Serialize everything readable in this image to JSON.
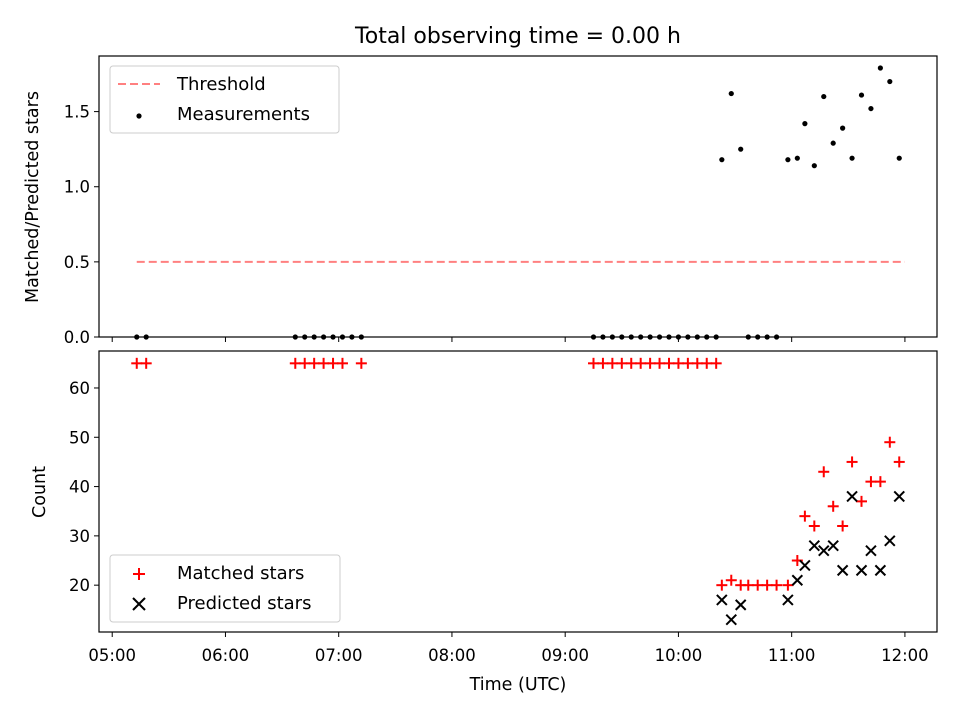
{
  "chart_data": [
    {
      "type": "scatter",
      "title": "Total observing time = 0.00 h",
      "ylabel": "Matched/Predicted stars",
      "xlabel": "",
      "x_unit": "time (UTC, HH:MM)",
      "xlim": [
        "04:53",
        "12:17"
      ],
      "ylim": [
        0.0,
        1.87
      ],
      "yticks": [
        0.0,
        0.5,
        1.0,
        1.5
      ],
      "ytick_labels": [
        "0.0",
        "0.5",
        "1.0",
        "1.5"
      ],
      "grid": false,
      "legend": {
        "placement": "top-left",
        "entries": [
          "Threshold",
          "Measurements"
        ]
      },
      "series": [
        {
          "name": "Threshold",
          "style": "dashed-line",
          "color": "#ff8080",
          "points": [
            {
              "x": "05:13",
              "y": 0.5
            },
            {
              "x": "12:00",
              "y": 0.5
            }
          ]
        },
        {
          "name": "Measurements",
          "style": "dot",
          "color": "#000000",
          "points": [
            {
              "x": "05:13",
              "y": 0.0
            },
            {
              "x": "05:18",
              "y": 0.0
            },
            {
              "x": "06:37",
              "y": 0.0
            },
            {
              "x": "06:42",
              "y": 0.0
            },
            {
              "x": "06:47",
              "y": 0.0
            },
            {
              "x": "06:52",
              "y": 0.0
            },
            {
              "x": "06:57",
              "y": 0.0
            },
            {
              "x": "07:02",
              "y": 0.0
            },
            {
              "x": "07:07",
              "y": 0.0
            },
            {
              "x": "07:12",
              "y": 0.0
            },
            {
              "x": "09:15",
              "y": 0.0
            },
            {
              "x": "09:20",
              "y": 0.0
            },
            {
              "x": "09:25",
              "y": 0.0
            },
            {
              "x": "09:30",
              "y": 0.0
            },
            {
              "x": "09:35",
              "y": 0.0
            },
            {
              "x": "09:40",
              "y": 0.0
            },
            {
              "x": "09:45",
              "y": 0.0
            },
            {
              "x": "09:50",
              "y": 0.0
            },
            {
              "x": "09:55",
              "y": 0.0
            },
            {
              "x": "10:00",
              "y": 0.0
            },
            {
              "x": "10:05",
              "y": 0.0
            },
            {
              "x": "10:10",
              "y": 0.0
            },
            {
              "x": "10:15",
              "y": 0.0
            },
            {
              "x": "10:20",
              "y": 0.0
            },
            {
              "x": "10:37",
              "y": 0.0
            },
            {
              "x": "10:42",
              "y": 0.0
            },
            {
              "x": "10:47",
              "y": 0.0
            },
            {
              "x": "10:52",
              "y": 0.0
            },
            {
              "x": "10:23",
              "y": 1.18
            },
            {
              "x": "10:28",
              "y": 1.62
            },
            {
              "x": "10:33",
              "y": 1.25
            },
            {
              "x": "10:58",
              "y": 1.18
            },
            {
              "x": "11:03",
              "y": 1.19
            },
            {
              "x": "11:07",
              "y": 1.42
            },
            {
              "x": "11:12",
              "y": 1.14
            },
            {
              "x": "11:17",
              "y": 1.6
            },
            {
              "x": "11:22",
              "y": 1.29
            },
            {
              "x": "11:27",
              "y": 1.39
            },
            {
              "x": "11:32",
              "y": 1.19
            },
            {
              "x": "11:37",
              "y": 1.61
            },
            {
              "x": "11:42",
              "y": 1.52
            },
            {
              "x": "11:47",
              "y": 1.79
            },
            {
              "x": "11:52",
              "y": 1.7
            },
            {
              "x": "11:57",
              "y": 1.19
            }
          ]
        }
      ]
    },
    {
      "type": "scatter",
      "title": "",
      "ylabel": "Count",
      "xlabel": "Time (UTC)",
      "x_unit": "time (UTC, HH:MM)",
      "xlim": [
        "04:53",
        "12:17"
      ],
      "ylim": [
        10.5,
        67.5
      ],
      "yticks": [
        20,
        30,
        40,
        50,
        60
      ],
      "ytick_labels": [
        "20",
        "30",
        "40",
        "50",
        "60"
      ],
      "xticks": [
        "05:00",
        "06:00",
        "07:00",
        "08:00",
        "09:00",
        "10:00",
        "11:00",
        "12:00"
      ],
      "xtick_labels": [
        "05:00",
        "06:00",
        "07:00",
        "08:00",
        "09:00",
        "10:00",
        "11:00",
        "12:00"
      ],
      "grid": false,
      "legend": {
        "placement": "bottom-left",
        "entries": [
          "Matched stars",
          "Predicted stars"
        ]
      },
      "series": [
        {
          "name": "Matched stars",
          "marker": "plus",
          "color": "#ff0000",
          "points": [
            {
              "x": "05:13",
              "y": 65
            },
            {
              "x": "05:18",
              "y": 65
            },
            {
              "x": "06:37",
              "y": 65
            },
            {
              "x": "06:42",
              "y": 65
            },
            {
              "x": "06:47",
              "y": 65
            },
            {
              "x": "06:52",
              "y": 65
            },
            {
              "x": "06:57",
              "y": 65
            },
            {
              "x": "07:02",
              "y": 65
            },
            {
              "x": "07:12",
              "y": 65
            },
            {
              "x": "09:15",
              "y": 65
            },
            {
              "x": "09:20",
              "y": 65
            },
            {
              "x": "09:25",
              "y": 65
            },
            {
              "x": "09:30",
              "y": 65
            },
            {
              "x": "09:35",
              "y": 65
            },
            {
              "x": "09:40",
              "y": 65
            },
            {
              "x": "09:45",
              "y": 65
            },
            {
              "x": "09:50",
              "y": 65
            },
            {
              "x": "09:55",
              "y": 65
            },
            {
              "x": "10:00",
              "y": 65
            },
            {
              "x": "10:05",
              "y": 65
            },
            {
              "x": "10:10",
              "y": 65
            },
            {
              "x": "10:15",
              "y": 65
            },
            {
              "x": "10:20",
              "y": 65
            },
            {
              "x": "10:23",
              "y": 20
            },
            {
              "x": "10:28",
              "y": 21
            },
            {
              "x": "10:33",
              "y": 20
            },
            {
              "x": "10:37",
              "y": 20
            },
            {
              "x": "10:42",
              "y": 20
            },
            {
              "x": "10:47",
              "y": 20
            },
            {
              "x": "10:52",
              "y": 20
            },
            {
              "x": "10:58",
              "y": 20
            },
            {
              "x": "11:03",
              "y": 25
            },
            {
              "x": "11:07",
              "y": 34
            },
            {
              "x": "11:12",
              "y": 32
            },
            {
              "x": "11:17",
              "y": 43
            },
            {
              "x": "11:22",
              "y": 36
            },
            {
              "x": "11:27",
              "y": 32
            },
            {
              "x": "11:32",
              "y": 45
            },
            {
              "x": "11:37",
              "y": 37
            },
            {
              "x": "11:42",
              "y": 41
            },
            {
              "x": "11:47",
              "y": 41
            },
            {
              "x": "11:52",
              "y": 49
            },
            {
              "x": "11:57",
              "y": 45
            }
          ]
        },
        {
          "name": "Predicted stars",
          "marker": "x",
          "color": "#000000",
          "points": [
            {
              "x": "10:23",
              "y": 17
            },
            {
              "x": "10:28",
              "y": 13
            },
            {
              "x": "10:33",
              "y": 16
            },
            {
              "x": "10:58",
              "y": 17
            },
            {
              "x": "11:03",
              "y": 21
            },
            {
              "x": "11:07",
              "y": 24
            },
            {
              "x": "11:12",
              "y": 28
            },
            {
              "x": "11:17",
              "y": 27
            },
            {
              "x": "11:22",
              "y": 28
            },
            {
              "x": "11:27",
              "y": 23
            },
            {
              "x": "11:32",
              "y": 38
            },
            {
              "x": "11:37",
              "y": 23
            },
            {
              "x": "11:42",
              "y": 27
            },
            {
              "x": "11:47",
              "y": 23
            },
            {
              "x": "11:52",
              "y": 29
            },
            {
              "x": "11:57",
              "y": 38
            }
          ]
        }
      ]
    }
  ]
}
